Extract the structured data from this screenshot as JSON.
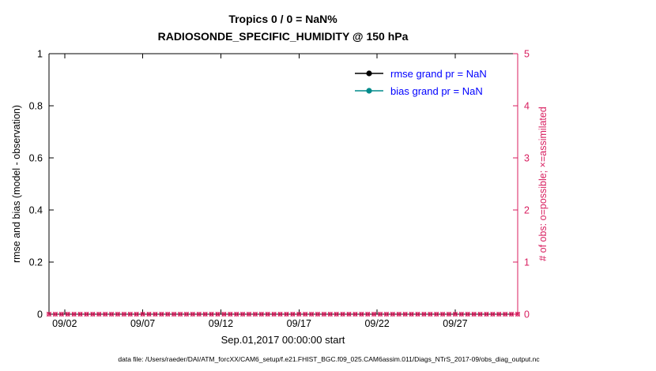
{
  "figure": {
    "title": "Tropics 0 / 0 = NaN%",
    "subtitle": "RADIOSONDE_SPECIFIC_HUMIDITY @ 150 hPa",
    "footer": "data file: /Users/raeder/DAI/ATM_forcXX/CAM6_setup/f.e21.FHIST_BGC.f09_025.CAM6assim.011/Diags_NTrS_2017-09/obs_diag_output.nc"
  },
  "chart_data": {
    "type": "line",
    "title": "Tropics 0 / 0 = NaN%",
    "subtitle": "RADIOSONDE_SPECIFIC_HUMIDITY @ 150 hPa",
    "xlabel": "Sep.01,2017 00:00:00 start",
    "ylabel_left": "rmse and bias (model - observation)",
    "ylabel_right": "# of obs: o=possible; ×=assimilated",
    "ylim_left": [
      0,
      1
    ],
    "yticks_left": [
      0,
      0.2,
      0.4,
      0.6,
      0.8,
      1
    ],
    "ylim_right": [
      0,
      5
    ],
    "yticks_right": [
      0,
      1,
      2,
      3,
      4,
      5
    ],
    "x_domain_days": [
      1,
      31
    ],
    "xticks": [
      {
        "day": 2,
        "label": "09/02"
      },
      {
        "day": 7,
        "label": "09/07"
      },
      {
        "day": 12,
        "label": "09/12"
      },
      {
        "day": 17,
        "label": "09/17"
      },
      {
        "day": 22,
        "label": "09/22"
      },
      {
        "day": 27,
        "label": "09/27"
      }
    ],
    "series": [
      {
        "name": "rmse grand pr = NaN",
        "color": "#000000",
        "values": [],
        "note": "all values NaN, no line drawn"
      },
      {
        "name": "bias grand pr = NaN",
        "color": "#008b8b",
        "values": [],
        "note": "all values NaN, no line drawn"
      }
    ],
    "obs_counts": {
      "possible": 0,
      "assimilated": 0,
      "marker_value": 0,
      "n_markers": 76,
      "marker_symbols": [
        "o",
        "x"
      ],
      "color": "#d81e5f"
    },
    "legend_text_color": "#0000ff",
    "axes": {
      "left_color": "#000000",
      "right_color": "#d81e5f",
      "grid": false,
      "background": "#ffffff"
    }
  }
}
